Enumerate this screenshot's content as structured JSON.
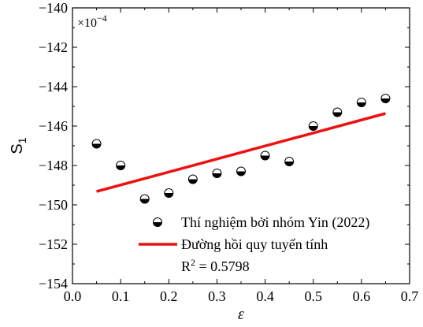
{
  "colors": {
    "fit_line": "#ee1111",
    "marker_edge": "#000000",
    "marker_fill": "#000000",
    "axis": "#000000"
  },
  "chart_data": {
    "type": "scatter",
    "title": "",
    "xlabel": "ε",
    "ylabel": "S",
    "ylabel_subscript": "1",
    "xlim": [
      0.0,
      0.7
    ],
    "ylim": [
      -154,
      -140
    ],
    "xticks": [
      0.0,
      0.1,
      0.2,
      0.3,
      0.4,
      0.5,
      0.6,
      0.7
    ],
    "xtick_labels": [
      "0.0",
      "0.1",
      "0.2",
      "0.3",
      "0.4",
      "0.5",
      "0.6",
      "0.7"
    ],
    "yticks": [
      -154,
      -152,
      -150,
      -148,
      -146,
      -144,
      -142,
      -140
    ],
    "ytick_labels": [
      "−154",
      "−152",
      "−150",
      "−148",
      "−146",
      "−144",
      "−142",
      "−140"
    ],
    "multiplier_base": "×10",
    "multiplier_exp": "−4",
    "grid": false,
    "legend_position": "bottom-right",
    "series": [
      {
        "name": "Thí nghiệm bởi nhóm Yin (2022)",
        "kind": "scatter",
        "marker": "half-filled-circle",
        "x": [
          0.05,
          0.1,
          0.15,
          0.2,
          0.25,
          0.3,
          0.35,
          0.4,
          0.45,
          0.5,
          0.55,
          0.6,
          0.65
        ],
        "y": [
          -146.9,
          -148.0,
          -149.7,
          -149.4,
          -148.7,
          -148.4,
          -148.3,
          -147.5,
          -147.8,
          -146.0,
          -145.3,
          -144.8,
          -144.6
        ]
      },
      {
        "name": "Đường hồi quy tuyến tính",
        "kind": "line",
        "x": [
          0.05,
          0.65
        ],
        "y": [
          -149.32,
          -145.36
        ]
      }
    ],
    "annotation_r2": {
      "label": "R",
      "exp": "2",
      "value": " = 0.5798"
    }
  }
}
